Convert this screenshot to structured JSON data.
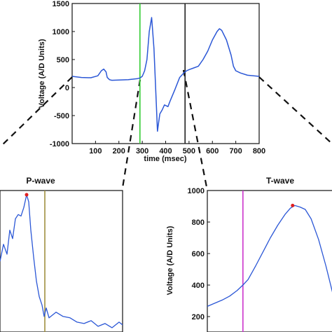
{
  "chart_data": [
    {
      "type": "line",
      "title": "",
      "xlabel": "time (msec)",
      "ylabel": "Voltage (A/D Units)",
      "xlim": [
        0,
        800
      ],
      "ylim": [
        -1000,
        1500
      ],
      "xticks": [
        "100",
        "200",
        "300",
        "400",
        "500",
        "600",
        "700",
        "800"
      ],
      "yticks": [
        "-1000",
        "-500",
        "0",
        "500",
        "1000",
        "1500"
      ],
      "vlines": [
        {
          "x": 290,
          "color": "#33cc33"
        },
        {
          "x": 483,
          "color": "#222222"
        }
      ],
      "series": [
        {
          "color": "#2b57d6",
          "x": [
            0,
            40,
            80,
            110,
            125,
            135,
            145,
            150,
            160,
            170,
            200,
            240,
            260,
            280,
            290,
            300,
            310,
            320,
            330,
            340,
            350,
            360,
            365,
            370,
            375,
            385,
            395,
            410,
            420,
            440,
            460,
            480,
            490,
            500,
            520,
            540,
            560,
            580,
            600,
            620,
            630,
            640,
            660,
            680,
            690,
            700,
            720,
            750,
            800
          ],
          "y": [
            200,
            180,
            175,
            210,
            300,
            330,
            280,
            180,
            140,
            130,
            135,
            140,
            150,
            160,
            170,
            200,
            300,
            500,
            1000,
            1250,
            700,
            -300,
            -780,
            -620,
            -470,
            -400,
            -310,
            -340,
            -230,
            -30,
            180,
            270,
            300,
            320,
            350,
            380,
            500,
            650,
            850,
            1000,
            1050,
            1020,
            850,
            580,
            380,
            300,
            260,
            220,
            200
          ]
        }
      ]
    },
    {
      "type": "line",
      "title": "P-wave",
      "xlabel": "",
      "ylabel": "",
      "vlines": [
        {
          "x": 64,
          "color": "#a09040"
        }
      ],
      "markers": [
        {
          "x": 38,
          "y": 0.97,
          "color": "#e02020"
        }
      ],
      "series": [
        {
          "color": "#2b57d6",
          "x": [
            0,
            5,
            10,
            14,
            18,
            22,
            26,
            30,
            34,
            38,
            41,
            44,
            48,
            52,
            56,
            60,
            63,
            66,
            70,
            80,
            90,
            100,
            110,
            120,
            130,
            140,
            150,
            160,
            170,
            175
          ],
          "y": [
            0.5,
            0.62,
            0.55,
            0.72,
            0.66,
            0.8,
            0.83,
            0.82,
            0.88,
            0.97,
            0.92,
            0.72,
            0.53,
            0.36,
            0.25,
            0.19,
            0.11,
            0.17,
            0.1,
            0.14,
            0.11,
            0.1,
            0.07,
            0.06,
            0.08,
            0.04,
            0.06,
            0.03,
            0.07,
            0.05
          ]
        }
      ]
    },
    {
      "type": "line",
      "title": "T-wave",
      "xlabel": "",
      "ylabel": "Voltage (A/D Units)",
      "ylim": [
        200,
        1000
      ],
      "xrange": [
        0,
        170
      ],
      "yticks": [
        "200",
        "400",
        "600",
        "800",
        "1000"
      ],
      "vlines": [
        {
          "x": 48,
          "color": "#cc33cc"
        }
      ],
      "markers": [
        {
          "x": 115,
          "y": 905,
          "color": "#e02020"
        }
      ],
      "series": [
        {
          "color": "#2b57d6",
          "x": [
            0,
            10,
            20,
            30,
            40,
            48,
            55,
            65,
            75,
            85,
            95,
            105,
            112,
            118,
            125,
            132,
            140,
            150,
            160,
            170
          ],
          "y": [
            265,
            285,
            305,
            330,
            365,
            400,
            435,
            520,
            610,
            700,
            780,
            850,
            888,
            905,
            895,
            880,
            820,
            690,
            520,
            330
          ]
        }
      ]
    }
  ]
}
